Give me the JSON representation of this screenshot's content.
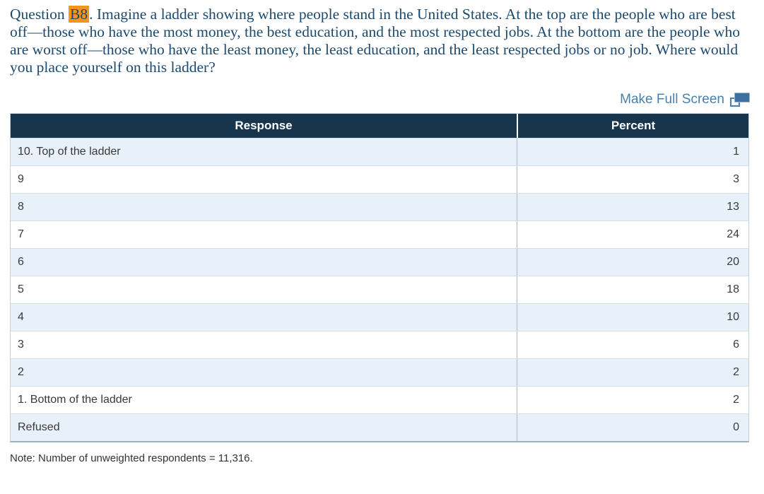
{
  "question": {
    "prefix": "Question ",
    "highlight": "B8",
    "suffix": ". Imagine a ladder showing where people stand in the United States. At the top are the people who are best off—those who have the most money, the best education, and the most respected jobs. At the bottom are the people who are worst off—those who have the least money, the least education, and the least respected jobs or no job. Where would you place yourself on this ladder?"
  },
  "toolbar": {
    "fullscreen_label": "Make Full Screen"
  },
  "table": {
    "headers": {
      "response": "Response",
      "percent": "Percent"
    },
    "rows": [
      {
        "response": "10. Top of the ladder",
        "percent": "1"
      },
      {
        "response": "9",
        "percent": "3"
      },
      {
        "response": "8",
        "percent": "13"
      },
      {
        "response": "7",
        "percent": "24"
      },
      {
        "response": "6",
        "percent": "20"
      },
      {
        "response": "5",
        "percent": "18"
      },
      {
        "response": "4",
        "percent": "10"
      },
      {
        "response": "3",
        "percent": "6"
      },
      {
        "response": "2",
        "percent": "2"
      },
      {
        "response": "1. Bottom of the ladder",
        "percent": "2"
      },
      {
        "response": "Refused",
        "percent": "0"
      }
    ]
  },
  "note": "Note: Number of unweighted respondents = 11,316.",
  "colors": {
    "header_bg": "#17364e",
    "row_alt_bg": "#e8f1f9",
    "question_text": "#1c4a6e",
    "highlight_bg": "#f7941d",
    "link": "#4a80ad",
    "cell_text": "#3a3a3a"
  }
}
